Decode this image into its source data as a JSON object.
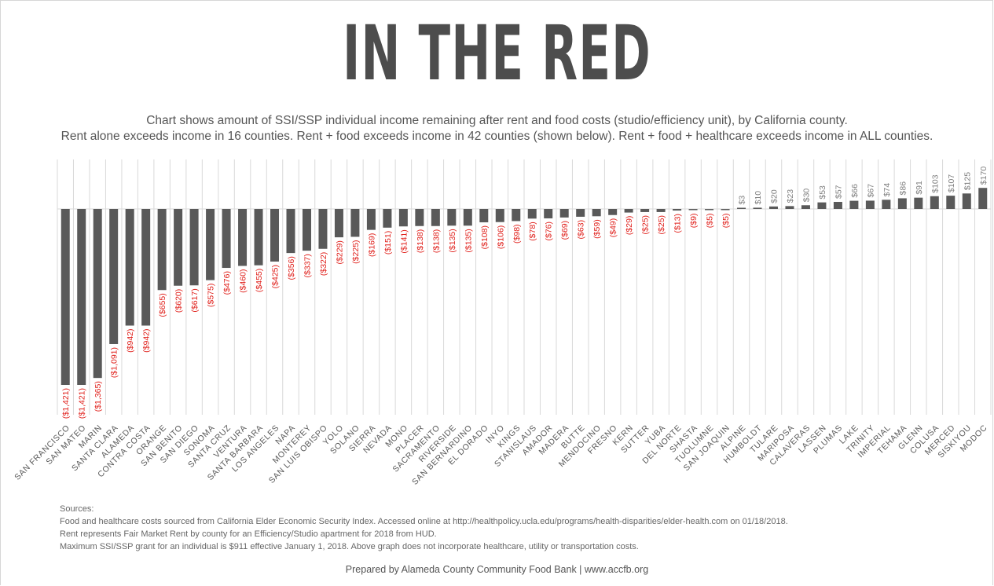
{
  "title": "IN THE RED",
  "subtitle_line1": "Chart shows amount of SSI/SSP individual income remaining after rent and food costs (studio/efficiency unit), by California county.",
  "subtitle_line2": "Rent alone exceeds income in 16 counties. Rent + food exceeds income in 42 counties (shown below). Rent + food + healthcare exceeds income in ALL counties.",
  "colors": {
    "bar": "#595959",
    "negative_label": "#e0201b",
    "positive_label": "#7f7f7f",
    "axis": "#d9d9d9",
    "title": "#4d4d4d"
  },
  "chart_data": {
    "type": "bar",
    "categories": [
      "SAN FRANCISCO",
      "SAN MATEO",
      "MARIN",
      "SANTA CLARA",
      "ALAMEDA",
      "CONTRA COSTA",
      "ORANGE",
      "SAN BENITO",
      "SAN DIEGO",
      "SONOMA",
      "SANTA CRUZ",
      "VENTURA",
      "SANTA BARBARA",
      "LOS ANGELES",
      "NAPA",
      "MONTEREY",
      "SAN LUIS OBISPO",
      "YOLO",
      "SOLANO",
      "SIERRA",
      "NEVADA",
      "MONO",
      "PLACER",
      "SACRAMENTO",
      "RIVERSIDE",
      "SAN BERNARDINO",
      "EL DORADO",
      "INYO",
      "KINGS",
      "STANISLAUS",
      "AMADOR",
      "MADERA",
      "BUTTE",
      "MENDOCINO",
      "FRESNO",
      "KERN",
      "SUTTER",
      "YUBA",
      "DEL NORTE",
      "SHASTA",
      "TUOLUMNE",
      "SAN JOAQUIN",
      "ALPINE",
      "HUMBOLDT",
      "TULARE",
      "MARIPOSA",
      "CALAVERAS",
      "LASSEN",
      "PLUMAS",
      "LAKE",
      "TRINITY",
      "IMPERIAL",
      "TEHAMA",
      "GLENN",
      "COLUSA",
      "MERCED",
      "SISKIYOU",
      "MODOC"
    ],
    "values": [
      -1421,
      -1421,
      -1365,
      -1091,
      -942,
      -942,
      -655,
      -620,
      -617,
      -575,
      -476,
      -460,
      -455,
      -425,
      -356,
      -337,
      -322,
      -229,
      -225,
      -169,
      -151,
      -141,
      -138,
      -138,
      -135,
      -135,
      -108,
      -106,
      -98,
      -78,
      -76,
      -69,
      -63,
      -59,
      -49,
      -29,
      -25,
      -25,
      -13,
      -9,
      -5,
      -5,
      3,
      10,
      20,
      23,
      30,
      53,
      57,
      66,
      67,
      74,
      86,
      91,
      103,
      107,
      125,
      170
    ],
    "data_labels": [
      "($1,421)",
      "($1,421)",
      "($1,365)",
      "($1,091)",
      "($942)",
      "($942)",
      "($655)",
      "($620)",
      "($617)",
      "($575)",
      "($476)",
      "($460)",
      "($455)",
      "($425)",
      "($356)",
      "($337)",
      "($322)",
      "($229)",
      "($225)",
      "($169)",
      "($151)",
      "($141)",
      "($138)",
      "($138)",
      "($135)",
      "($135)",
      "($108)",
      "($106)",
      "($98)",
      "($78)",
      "($76)",
      "($69)",
      "($63)",
      "($59)",
      "($49)",
      "($29)",
      "($25)",
      "($25)",
      "($13)",
      "($9)",
      "($5)",
      "($5)",
      "$3",
      "$10",
      "$20",
      "$23",
      "$30",
      "$53",
      "$57",
      "$66",
      "$67",
      "$74",
      "$86",
      "$91",
      "$103",
      "$107",
      "$125",
      "$170"
    ],
    "ylim": [
      -1421,
      170
    ],
    "grid": false,
    "legend": "none"
  },
  "sources": {
    "heading": "Sources:",
    "lines": [
      "Food and healthcare costs sourced from California Elder Economic Security Index. Accessed online at http://healthpolicy.ucla.edu/programs/health-disparities/elder-health.com  on 01/18/2018.",
      "Rent represents Fair Market Rent by county for an Efficiency/Studio apartment for 2018 from HUD.",
      "Maximum SSI/SSP grant for an individual is $911 effective January 1, 2018. Above graph does not incorporate healthcare, utility or transportation costs."
    ]
  },
  "credit": "Prepared by Alameda County Community Food Bank | www.accfb.org"
}
